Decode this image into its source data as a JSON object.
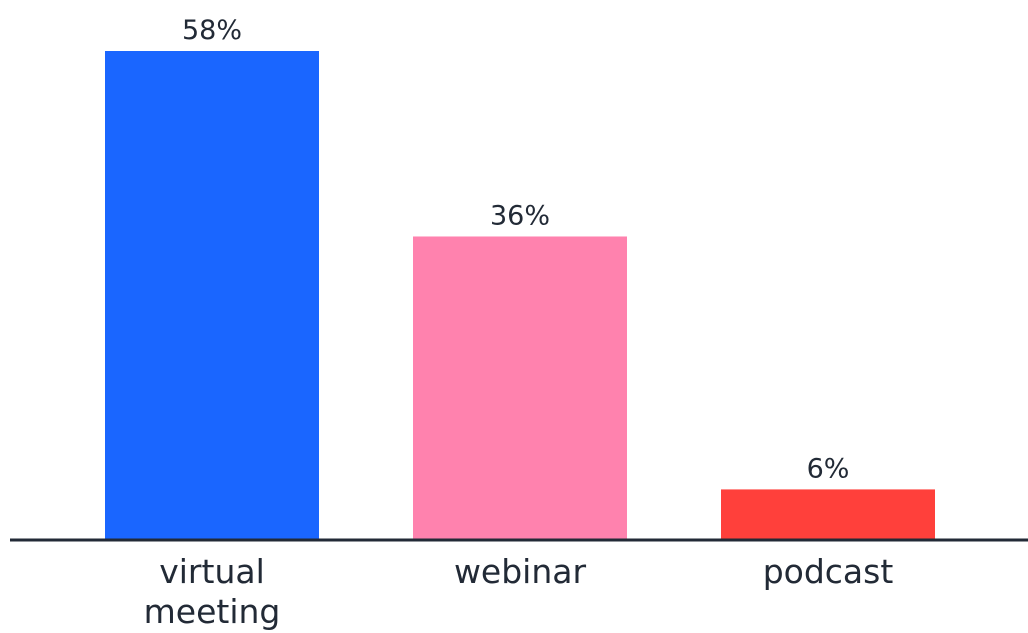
{
  "chart_data": {
    "type": "bar",
    "title": "",
    "xlabel": "",
    "ylabel": "",
    "categories": [
      [
        "virtual",
        "meeting"
      ],
      [
        "webinar"
      ],
      [
        "podcast"
      ]
    ],
    "values": [
      58,
      36,
      6
    ],
    "value_labels": [
      "58%",
      "36%",
      "6%"
    ],
    "unit": "%",
    "ylim": [
      0,
      58
    ],
    "grid": false,
    "legend": "none",
    "bar_colors": [
      "#1a66ff",
      "#ff82ae",
      "#ff403b"
    ],
    "axis_color": "#222a36",
    "text_color": "#222a36"
  }
}
